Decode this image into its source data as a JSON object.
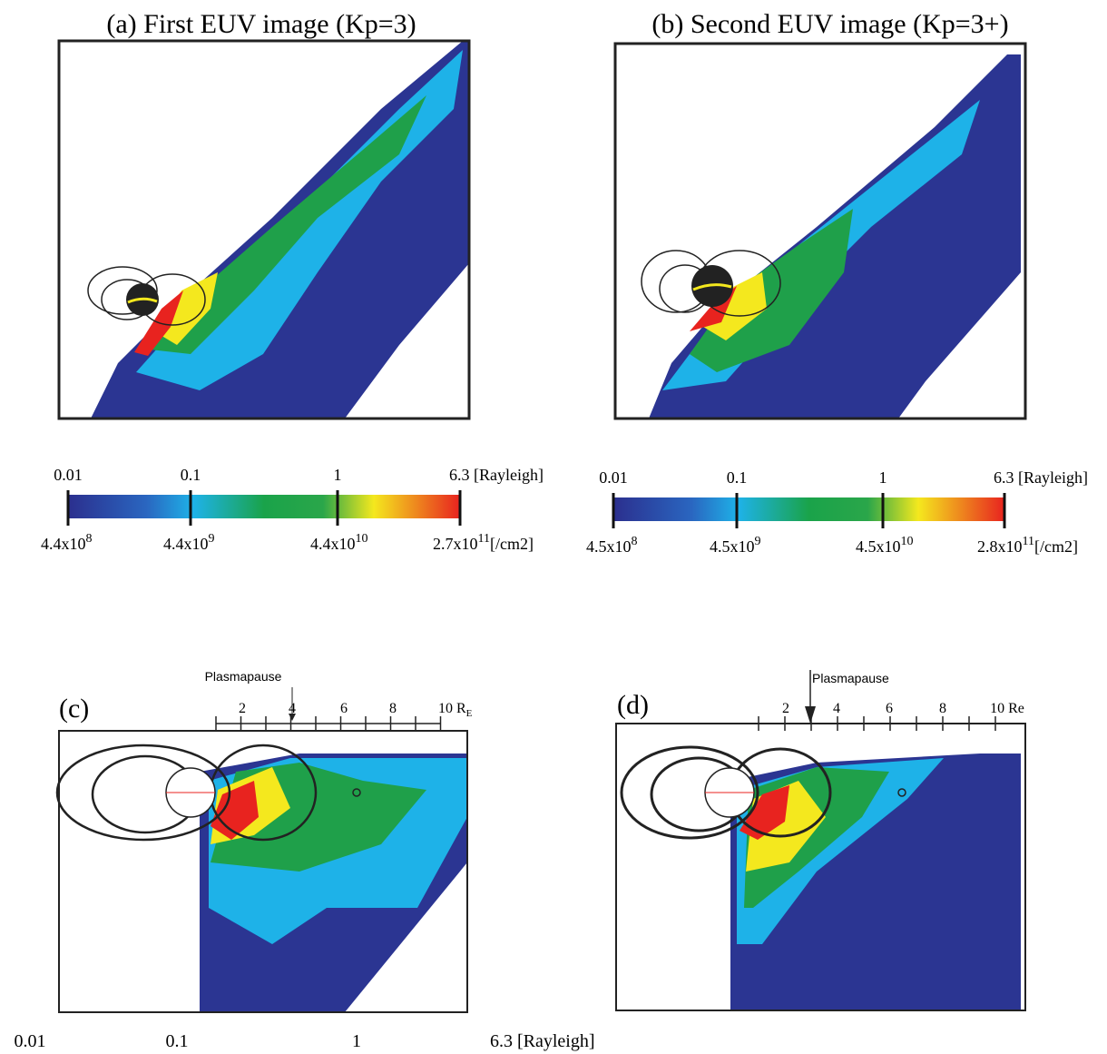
{
  "panels": [
    {
      "title": "(a) First EUV image (Kp=3)",
      "colorbar": {
        "top_labels": [
          "0.01",
          "0.1",
          "1",
          "6.3 [Rayleigh]"
        ],
        "bottom_labels": [
          {
            "base": "4.4x10",
            "exp": "8"
          },
          {
            "base": "4.4x10",
            "exp": "9"
          },
          {
            "base": "4.4x10",
            "exp": "10"
          },
          {
            "base": "2.7x10",
            "exp": "11",
            "unit": "[/cm2]"
          }
        ]
      }
    },
    {
      "title": "(b) Second EUV image (Kp=3+)",
      "colorbar": {
        "top_labels": [
          "0.01",
          "0.1",
          "1",
          "6.3 [Rayleigh]"
        ],
        "bottom_labels": [
          {
            "base": "4.5x10",
            "exp": "8"
          },
          {
            "base": "4.5x10",
            "exp": "9"
          },
          {
            "base": "4.5x10",
            "exp": "10"
          },
          {
            "base": "2.8x10",
            "exp": "11",
            "unit": "[/cm2]"
          }
        ]
      }
    },
    {
      "label": "(c)",
      "annotation": "Plasmapause",
      "scale_labels": [
        "2",
        "4",
        "6",
        "8"
      ],
      "scale_end": {
        "base": "10 R",
        "sub": "E"
      }
    },
    {
      "label": "(d)",
      "annotation": "Plasmapause",
      "scale_labels": [
        "2",
        "4",
        "6",
        "8",
        "10 Re"
      ]
    }
  ],
  "bottom_scale": [
    "0.01",
    "0.1",
    "1",
    "6.3 [Rayleigh]"
  ]
}
